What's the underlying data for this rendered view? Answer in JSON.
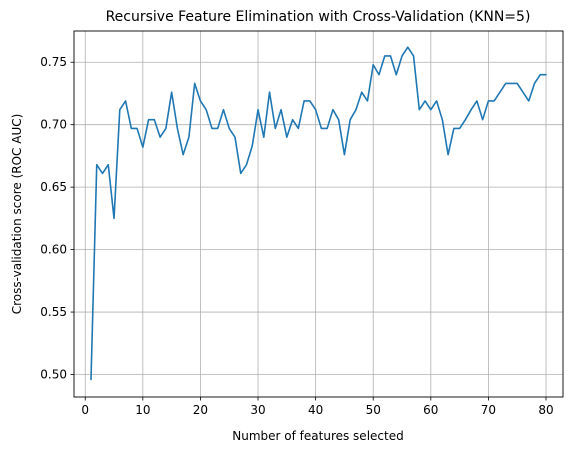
{
  "chart_data": {
    "type": "line",
    "title": "Recursive Feature Elimination with Cross-Validation (KNN=5)",
    "xlabel": "Number of features selected",
    "ylabel": "Cross-validation score (ROC AUC)",
    "xlim": [
      -1.95,
      82.95
    ],
    "ylim": [
      0.482,
      0.775
    ],
    "xticks": [
      0,
      10,
      20,
      30,
      40,
      50,
      60,
      70,
      80
    ],
    "yticks": [
      0.5,
      0.55,
      0.6,
      0.65,
      0.7,
      0.75
    ],
    "xtick_labels": [
      "0",
      "10",
      "20",
      "30",
      "40",
      "50",
      "60",
      "70",
      "80"
    ],
    "ytick_labels": [
      "0.50",
      "0.55",
      "0.60",
      "0.65",
      "0.70",
      "0.75"
    ],
    "grid": true,
    "line_color": "#1f77b4",
    "x": [
      1,
      2,
      3,
      4,
      5,
      6,
      7,
      8,
      9,
      10,
      11,
      12,
      13,
      14,
      15,
      16,
      17,
      18,
      19,
      20,
      21,
      22,
      23,
      24,
      25,
      26,
      27,
      28,
      29,
      30,
      31,
      32,
      33,
      34,
      35,
      36,
      37,
      38,
      39,
      40,
      41,
      42,
      43,
      44,
      45,
      46,
      47,
      48,
      49,
      50,
      51,
      52,
      53,
      54,
      55,
      56,
      57,
      58,
      59,
      60,
      61,
      62,
      63,
      64,
      65,
      66,
      67,
      68,
      69,
      70,
      71,
      72,
      73,
      74,
      75,
      76,
      77,
      78,
      79,
      80
    ],
    "y": [
      0.496,
      0.668,
      0.661,
      0.668,
      0.625,
      0.712,
      0.719,
      0.697,
      0.697,
      0.682,
      0.704,
      0.704,
      0.69,
      0.697,
      0.726,
      0.697,
      0.676,
      0.69,
      0.733,
      0.719,
      0.712,
      0.697,
      0.697,
      0.712,
      0.697,
      0.69,
      0.661,
      0.668,
      0.683,
      0.712,
      0.69,
      0.726,
      0.697,
      0.712,
      0.69,
      0.704,
      0.697,
      0.719,
      0.719,
      0.712,
      0.697,
      0.697,
      0.712,
      0.704,
      0.676,
      0.704,
      0.712,
      0.726,
      0.719,
      0.748,
      0.74,
      0.755,
      0.755,
      0.74,
      0.755,
      0.762,
      0.755,
      0.712,
      0.719,
      0.712,
      0.719,
      0.704,
      0.676,
      0.697,
      0.697,
      0.704,
      0.712,
      0.719,
      0.704,
      0.719,
      0.719,
      0.726,
      0.733,
      0.733,
      0.733,
      0.726,
      0.719,
      0.733,
      0.74,
      0.74
    ]
  }
}
